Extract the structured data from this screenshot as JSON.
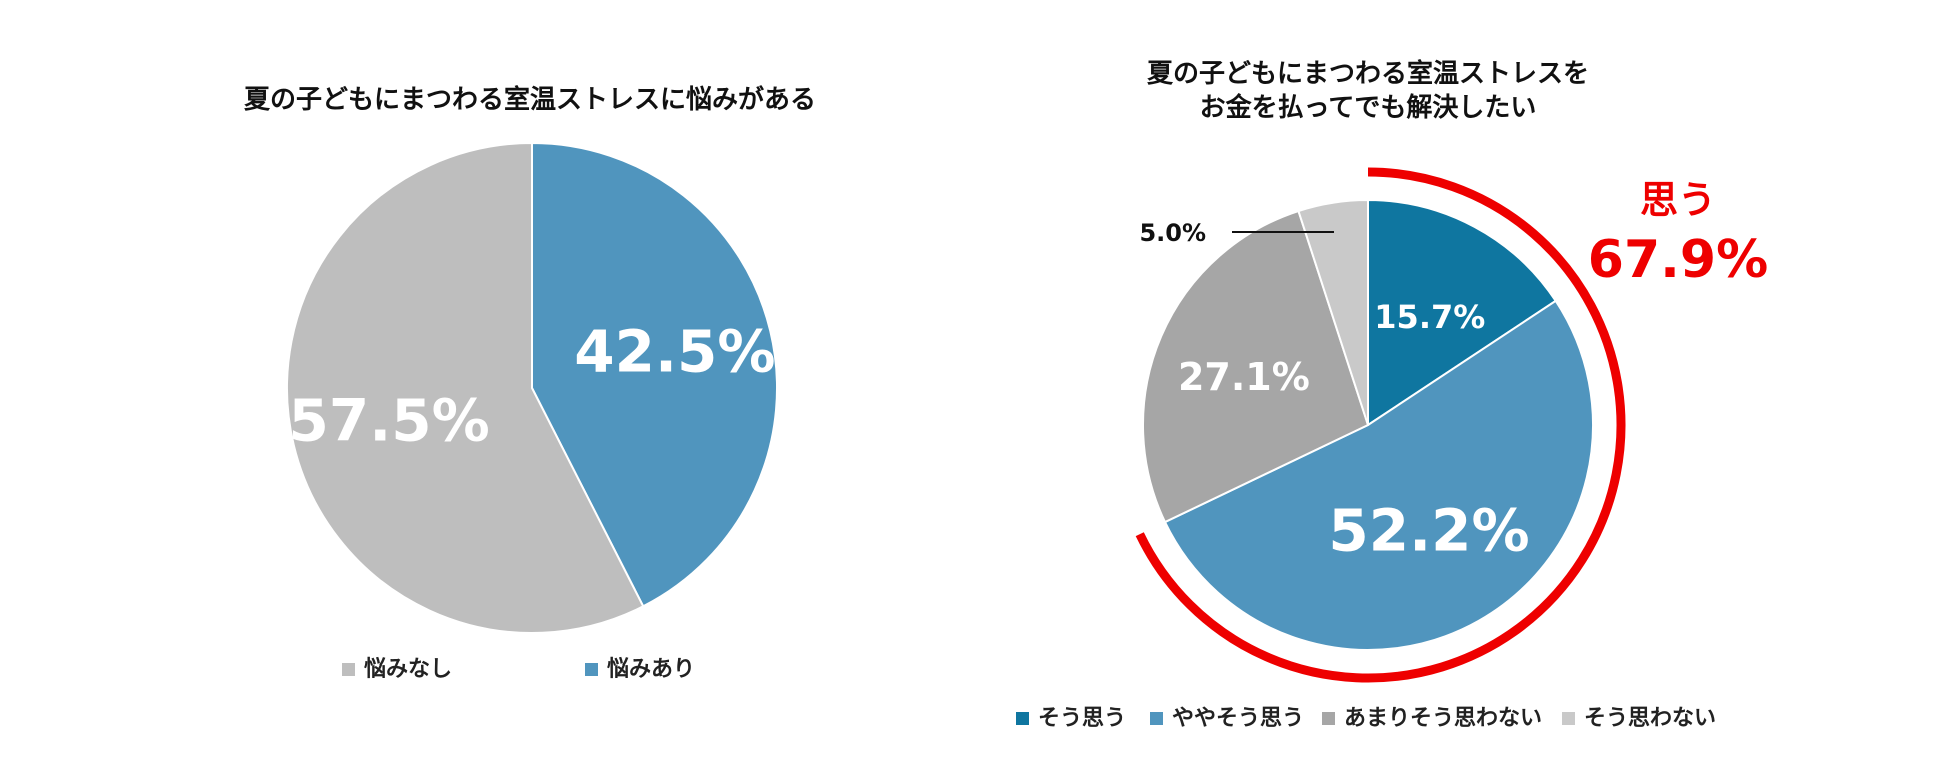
{
  "chart_data": [
    {
      "type": "pie",
      "title": "夏の子どもにまつわる室温ストレスに悩みがある",
      "categories": [
        "悩みあり",
        "悩みなし"
      ],
      "values": [
        42.5,
        57.5
      ],
      "labels": [
        "42.5%",
        "57.5%"
      ],
      "colors": [
        "#5095be",
        "#bebebe"
      ],
      "legend": {
        "position": "bottom",
        "order": [
          1,
          0
        ]
      }
    },
    {
      "type": "pie",
      "title_lines": [
        "夏の子どもにまつわる室温ストレスを",
        "お金を払ってでも解決したい"
      ],
      "categories": [
        "そう思う",
        "ややそう思う",
        "あまりそう思わない",
        "そう思わない"
      ],
      "values": [
        15.7,
        52.2,
        27.1,
        5.0
      ],
      "labels": [
        "15.7%",
        "52.2%",
        "27.1%",
        "5.0%"
      ],
      "colors": [
        "#0f76a0",
        "#5095be",
        "#a6a6a6",
        "#c9c9c9"
      ],
      "legend": {
        "position": "bottom",
        "order": [
          0,
          1,
          2,
          3
        ]
      },
      "callout": {
        "label": "思う",
        "value": "67.9%",
        "color": "#ee0000",
        "covers": [
          0,
          1
        ]
      }
    }
  ]
}
